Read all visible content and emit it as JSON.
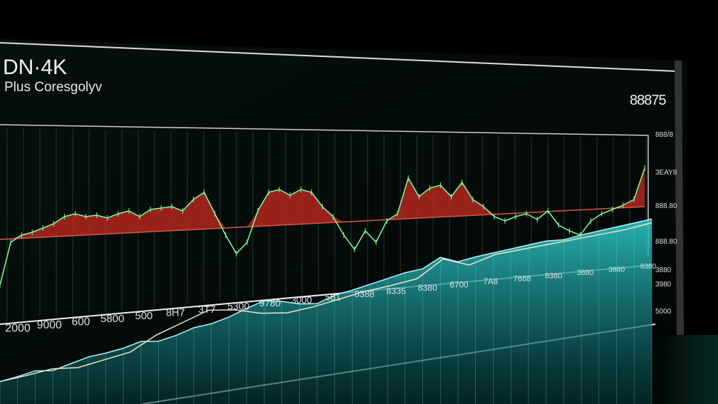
{
  "header": {
    "title": "DN·4K",
    "subtitle": "Plus Coresgolyv",
    "value": "88875"
  },
  "colors": {
    "line": "#7dffa0",
    "fill_above": "#b3261e",
    "threshold": "#d9574a",
    "area": "#1fa5a8",
    "frame": "#e8e8e8"
  },
  "chart_data": [
    {
      "type": "line",
      "title": "",
      "values": [
        10,
        40,
        45,
        47,
        50,
        53,
        58,
        60,
        58,
        59,
        57,
        60,
        62,
        58,
        63,
        64,
        65,
        62,
        70,
        75,
        60,
        45,
        32,
        40,
        62,
        75,
        77,
        73,
        77,
        75,
        65,
        58,
        45,
        35,
        48,
        40,
        55,
        60,
        85,
        72,
        78,
        80,
        72,
        82,
        70,
        65,
        58,
        55,
        58,
        60,
        56,
        62,
        52,
        48,
        45,
        55,
        60,
        63,
        66,
        70,
        92
      ],
      "threshold": [
        42,
        65
      ],
      "fill_above_threshold": true,
      "right_axis_labels": [
        "888/8",
        "3EAY8",
        "888.80",
        "888.80",
        "3880",
        "3980",
        "5000"
      ]
    },
    {
      "type": "area",
      "values": [
        5,
        8,
        12,
        10,
        15,
        20,
        22,
        25,
        30,
        28,
        32,
        38,
        40,
        45,
        52,
        58,
        55,
        50,
        48,
        55,
        58,
        62,
        66,
        70,
        72,
        82,
        75,
        78,
        80,
        82,
        84,
        86,
        85,
        88,
        90,
        92,
        94,
        96
      ],
      "overlay_line": [
        5,
        8,
        12,
        10,
        15,
        20,
        35,
        45,
        55,
        52,
        45,
        42,
        45,
        50,
        55,
        58,
        62,
        80,
        70,
        78,
        80,
        82,
        84,
        86,
        88,
        92
      ],
      "x_tick_labels": [
        "2000",
        "9000",
        "600",
        "5800",
        "500",
        "8H7",
        "3T7",
        "5300",
        "9780",
        "3000",
        "581",
        "8388",
        "8335",
        "8380",
        "6700",
        "7A8",
        "7888",
        "8380",
        "3880",
        "3880",
        "8380"
      ]
    }
  ]
}
